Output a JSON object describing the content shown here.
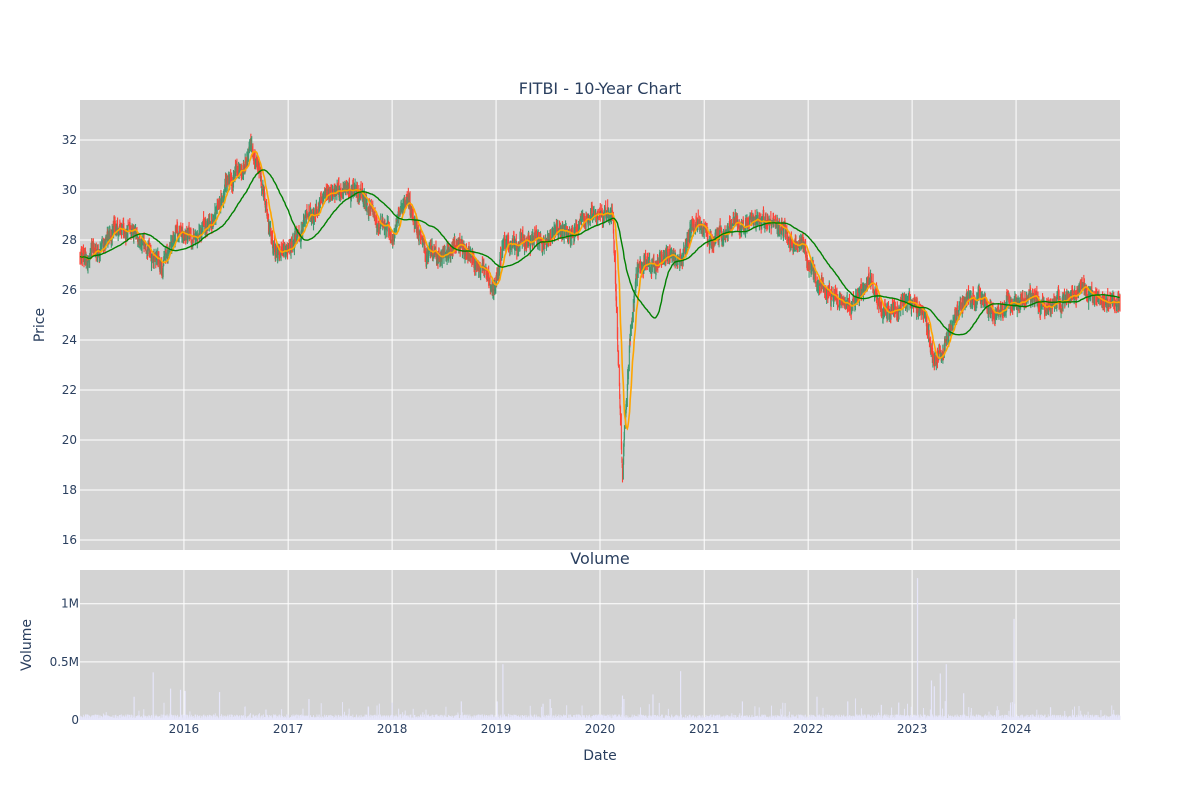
{
  "chart_data": [
    {
      "type": "candlestick",
      "title": "FITBI - 10-Year Chart",
      "ylabel": "Price",
      "xlabel": "",
      "ylim": [
        15.6,
        33.6
      ],
      "y_ticks": [
        16,
        18,
        20,
        22,
        24,
        26,
        28,
        30,
        32
      ],
      "x_range": [
        "2015-01-01",
        "2024-12-31"
      ],
      "x_ticks": [
        "2016",
        "2017",
        "2018",
        "2019",
        "2020",
        "2021",
        "2022",
        "2023",
        "2024"
      ],
      "grid": true,
      "background": "#d3d3d3",
      "colors": {
        "increasing": "#3d9970",
        "decreasing": "#ff4136",
        "ma_short": "#ffa500",
        "ma_long": "#008000"
      },
      "close_anchors": [
        [
          "2015-01-01",
          27.2
        ],
        [
          "2015-03-01",
          27.5
        ],
        [
          "2015-05-01",
          28.3
        ],
        [
          "2015-07-01",
          28.4
        ],
        [
          "2015-09-01",
          27.4
        ],
        [
          "2015-10-15",
          27.1
        ],
        [
          "2015-12-01",
          28.4
        ],
        [
          "2016-02-01",
          28.1
        ],
        [
          "2016-04-15",
          28.8
        ],
        [
          "2016-06-01",
          30.5
        ],
        [
          "2016-07-15",
          30.8
        ],
        [
          "2016-08-20",
          31.9
        ],
        [
          "2016-10-01",
          30.3
        ],
        [
          "2016-11-15",
          27.3
        ],
        [
          "2017-01-01",
          27.6
        ],
        [
          "2017-03-01",
          28.7
        ],
        [
          "2017-05-01",
          29.4
        ],
        [
          "2017-07-01",
          29.9
        ],
        [
          "2017-09-01",
          30.0
        ],
        [
          "2017-11-01",
          28.8
        ],
        [
          "2018-01-01",
          28.3
        ],
        [
          "2018-03-01",
          29.5
        ],
        [
          "2018-05-01",
          27.5
        ],
        [
          "2018-07-01",
          27.4
        ],
        [
          "2018-09-01",
          27.9
        ],
        [
          "2018-11-01",
          27.0
        ],
        [
          "2018-12-20",
          25.9
        ],
        [
          "2019-02-01",
          27.9
        ],
        [
          "2019-04-01",
          28.0
        ],
        [
          "2019-06-01",
          27.9
        ],
        [
          "2019-08-01",
          28.3
        ],
        [
          "2019-10-01",
          28.3
        ],
        [
          "2019-12-15",
          29.2
        ],
        [
          "2020-02-15",
          29.0
        ],
        [
          "2020-03-20",
          18.5
        ],
        [
          "2020-04-15",
          24.0
        ],
        [
          "2020-05-15",
          27.1
        ],
        [
          "2020-07-01",
          27.0
        ],
        [
          "2020-09-01",
          27.5
        ],
        [
          "2020-10-01",
          27.0
        ],
        [
          "2020-12-01",
          28.8
        ],
        [
          "2021-02-01",
          28.0
        ],
        [
          "2021-04-01",
          28.5
        ],
        [
          "2021-06-01",
          28.7
        ],
        [
          "2021-08-01",
          28.8
        ],
        [
          "2021-10-01",
          28.3
        ],
        [
          "2021-12-15",
          27.8
        ],
        [
          "2022-02-01",
          26.2
        ],
        [
          "2022-04-01",
          25.7
        ],
        [
          "2022-06-01",
          25.3
        ],
        [
          "2022-08-01",
          26.5
        ],
        [
          "2022-10-01",
          25.1
        ],
        [
          "2022-12-01",
          25.6
        ],
        [
          "2023-02-15",
          25.0
        ],
        [
          "2023-03-20",
          23.0
        ],
        [
          "2023-05-01",
          24.2
        ],
        [
          "2023-07-01",
          25.4
        ],
        [
          "2023-09-01",
          25.7
        ],
        [
          "2023-10-15",
          24.9
        ],
        [
          "2024-01-01",
          25.5
        ],
        [
          "2024-03-01",
          25.7
        ],
        [
          "2024-05-01",
          25.3
        ],
        [
          "2024-07-01",
          25.9
        ],
        [
          "2024-09-01",
          26.0
        ],
        [
          "2024-11-01",
          25.6
        ],
        [
          "2024-12-31",
          25.6
        ]
      ]
    },
    {
      "type": "bar",
      "title": "Volume",
      "ylabel": "Volume",
      "xlabel": "Date",
      "ylim": [
        0,
        1290000
      ],
      "y_ticks": [
        0,
        500000,
        1000000
      ],
      "y_tick_labels": [
        "0",
        "0.5M",
        "1M"
      ],
      "x_ticks": [
        "2016",
        "2017",
        "2018",
        "2019",
        "2020",
        "2021",
        "2022",
        "2023",
        "2024"
      ],
      "grid": true,
      "background": "#d3d3d3",
      "bar_color": "#e6e6fa",
      "typical_volume": 40000,
      "spikes": [
        [
          "2015-07-10",
          200000
        ],
        [
          "2015-09-15",
          410000
        ],
        [
          "2015-11-15",
          270000
        ],
        [
          "2015-12-20",
          260000
        ],
        [
          "2016-01-05",
          250000
        ],
        [
          "2016-05-05",
          240000
        ],
        [
          "2016-10-15",
          90000
        ],
        [
          "2017-03-15",
          180000
        ],
        [
          "2017-10-10",
          110000
        ],
        [
          "2018-01-01",
          150000
        ],
        [
          "2018-09-01",
          160000
        ],
        [
          "2019-01-05",
          160000
        ],
        [
          "2019-01-25",
          480000
        ],
        [
          "2019-06-15",
          140000
        ],
        [
          "2019-07-10",
          180000
        ],
        [
          "2020-03-20",
          210000
        ],
        [
          "2020-03-25",
          180000
        ],
        [
          "2020-07-05",
          220000
        ],
        [
          "2020-10-10",
          420000
        ],
        [
          "2021-05-15",
          160000
        ],
        [
          "2022-02-01",
          200000
        ],
        [
          "2022-05-20",
          160000
        ],
        [
          "2022-09-15",
          130000
        ],
        [
          "2022-11-15",
          150000
        ],
        [
          "2023-01-20",
          1220000
        ],
        [
          "2023-03-10",
          340000
        ],
        [
          "2023-03-20",
          290000
        ],
        [
          "2023-04-10",
          400000
        ],
        [
          "2023-05-01",
          480000
        ],
        [
          "2023-07-01",
          230000
        ],
        [
          "2023-12-25",
          870000
        ],
        [
          "2024-05-01",
          110000
        ]
      ]
    }
  ]
}
